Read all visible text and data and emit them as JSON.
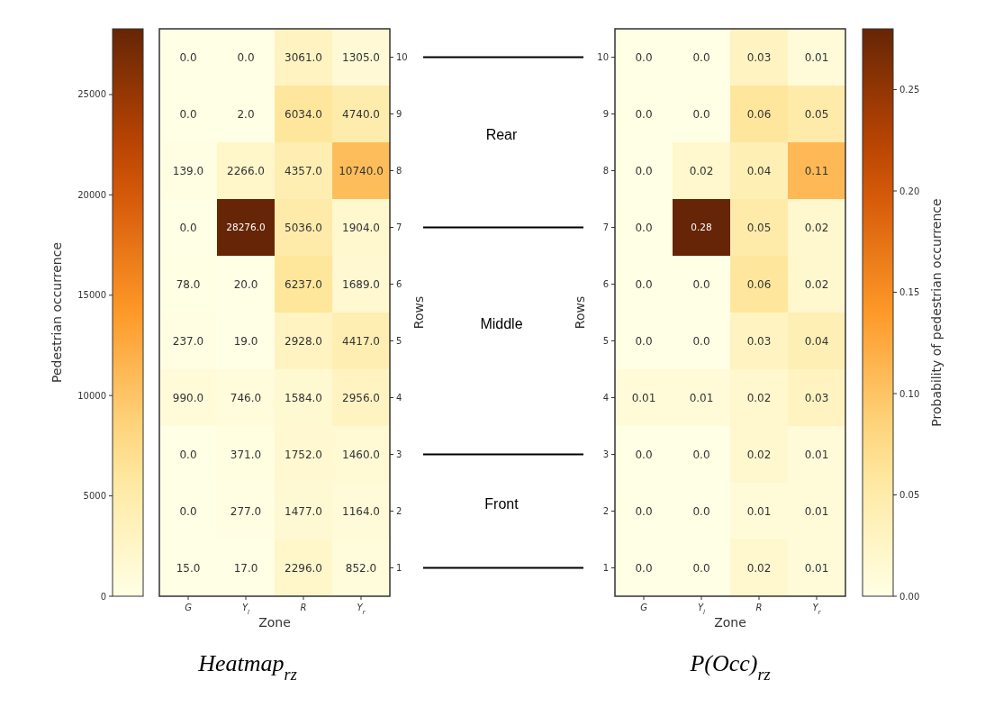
{
  "chart_data": [
    {
      "type": "heatmap",
      "title": "Heatmap$_{rz}$",
      "xlabel": "Zone",
      "ylabel": "Rows",
      "clabel": "Pedestrian occurrence",
      "categories": [
        "G",
        "Y$_{l}$",
        "R",
        "Y$_{r}$"
      ],
      "y_categories": [
        "10",
        "9",
        "8",
        "7",
        "6",
        "5",
        "4",
        "3",
        "2",
        "1"
      ],
      "cells": [
        [
          0,
          0,
          3061,
          1305
        ],
        [
          0,
          2,
          6034,
          4740
        ],
        [
          139,
          2266,
          4357,
          10740
        ],
        [
          0,
          28276,
          5036,
          1904
        ],
        [
          78,
          20,
          6237,
          1689
        ],
        [
          237,
          19,
          2928,
          4417
        ],
        [
          990,
          746,
          1584,
          2956
        ],
        [
          0,
          371,
          1752,
          1460
        ],
        [
          0,
          277,
          1477,
          1164
        ],
        [
          15,
          17,
          2296,
          852
        ]
      ],
      "cell_labels": [
        [
          "0.0",
          "0.0",
          "3061.0",
          "1305.0"
        ],
        [
          "0.0",
          "2.0",
          "6034.0",
          "4740.0"
        ],
        [
          "139.0",
          "2266.0",
          "4357.0",
          "10740.0"
        ],
        [
          "0.0",
          "28276.0",
          "5036.0",
          "1904.0"
        ],
        [
          "78.0",
          "20.0",
          "6237.0",
          "1689.0"
        ],
        [
          "237.0",
          "19.0",
          "2928.0",
          "4417.0"
        ],
        [
          "990.0",
          "746.0",
          "1584.0",
          "2956.0"
        ],
        [
          "0.0",
          "371.0",
          "1752.0",
          "1460.0"
        ],
        [
          "0.0",
          "277.0",
          "1477.0",
          "1164.0"
        ],
        [
          "15.0",
          "17.0",
          "2296.0",
          "852.0"
        ]
      ],
      "clim": [
        0,
        28276
      ],
      "cticks": [
        0,
        5000,
        10000,
        15000,
        20000,
        25000
      ],
      "annotations": [
        "Rear",
        "Middle",
        "Front"
      ]
    },
    {
      "type": "heatmap",
      "title": "P(Occ)$_{rz}$",
      "xlabel": "Zone",
      "ylabel": "Rows",
      "clabel": "Probability of pedestrian occurrence",
      "categories": [
        "G",
        "Y$_{l}$",
        "R",
        "Y$_{r}$"
      ],
      "y_categories": [
        "10",
        "9",
        "8",
        "7",
        "6",
        "5",
        "4",
        "3",
        "2",
        "1"
      ],
      "cells": [
        [
          0,
          0,
          0.03,
          0.01
        ],
        [
          0,
          0,
          0.06,
          0.05
        ],
        [
          0,
          0.02,
          0.04,
          0.11
        ],
        [
          0,
          0.28,
          0.05,
          0.02
        ],
        [
          0,
          0,
          0.06,
          0.02
        ],
        [
          0,
          0,
          0.03,
          0.04
        ],
        [
          0.01,
          0.01,
          0.02,
          0.03
        ],
        [
          0,
          0,
          0.02,
          0.01
        ],
        [
          0,
          0,
          0.01,
          0.01
        ],
        [
          0,
          0,
          0.02,
          0.01
        ]
      ],
      "cell_labels": [
        [
          "0.0",
          "0.0",
          "0.03",
          "0.01"
        ],
        [
          "0.0",
          "0.0",
          "0.06",
          "0.05"
        ],
        [
          "0.0",
          "0.02",
          "0.04",
          "0.11"
        ],
        [
          "0.0",
          "0.28",
          "0.05",
          "0.02"
        ],
        [
          "0.0",
          "0.0",
          "0.06",
          "0.02"
        ],
        [
          "0.0",
          "0.0",
          "0.03",
          "0.04"
        ],
        [
          "0.01",
          "0.01",
          "0.02",
          "0.03"
        ],
        [
          "0.0",
          "0.0",
          "0.02",
          "0.01"
        ],
        [
          "0.0",
          "0.0",
          "0.01",
          "0.01"
        ],
        [
          "0.0",
          "0.0",
          "0.02",
          "0.01"
        ]
      ],
      "clim": [
        0,
        0.28
      ],
      "cticks": [
        {
          "value": 0,
          "label": "0.00"
        },
        {
          "value": 0.05,
          "label": "0.05"
        },
        {
          "value": 0.1,
          "label": "0.10"
        },
        {
          "value": 0.15,
          "label": "0.15"
        },
        {
          "value": 0.2,
          "label": "0.20"
        },
        {
          "value": 0.25,
          "label": "0.25"
        }
      ]
    }
  ]
}
